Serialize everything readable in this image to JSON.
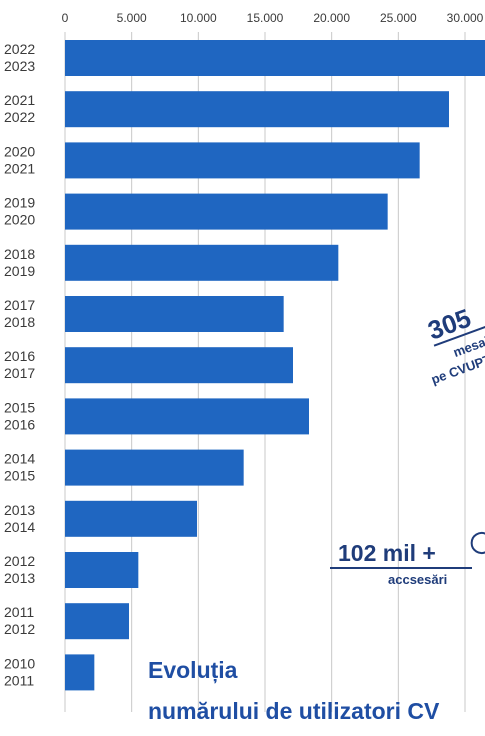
{
  "chart_data": {
    "type": "bar",
    "orientation": "horizontal",
    "categories": [
      [
        "2022",
        "2023"
      ],
      [
        "2021",
        "2022"
      ],
      [
        "2020",
        "2021"
      ],
      [
        "2019",
        "2020"
      ],
      [
        "2018",
        "2019"
      ],
      [
        "2017",
        "2018"
      ],
      [
        "2016",
        "2017"
      ],
      [
        "2015",
        "2016"
      ],
      [
        "2014",
        "2015"
      ],
      [
        "2013",
        "2014"
      ],
      [
        "2012",
        "2013"
      ],
      [
        "2011",
        "2012"
      ],
      [
        "2010",
        "2011"
      ]
    ],
    "values": [
      31500,
      28800,
      26600,
      24200,
      20500,
      16400,
      17100,
      18300,
      13400,
      9900,
      5500,
      4800,
      2200
    ],
    "xlim": [
      0,
      31500
    ],
    "xticks": [
      0,
      5000,
      10000,
      15000,
      20000,
      25000,
      30000
    ],
    "xtick_labels": [
      "0",
      "5.000",
      "10.000",
      "15.000",
      "20.000",
      "25.000",
      "30.000"
    ],
    "grid": true,
    "bar_color": "#1f66c1",
    "title": [
      "Evoluția",
      "numărului de utilizatori CV"
    ]
  },
  "annotations": {
    "messages_value": "305",
    "messages_label": "mesaj",
    "messages_sub": "pe CVUPT",
    "access_value": "102 mil +",
    "access_label": "accsesări"
  },
  "colors": {
    "title": "#1f4ea3",
    "annotation": "#1f3c7a",
    "grid": "#c8c8c8"
  }
}
